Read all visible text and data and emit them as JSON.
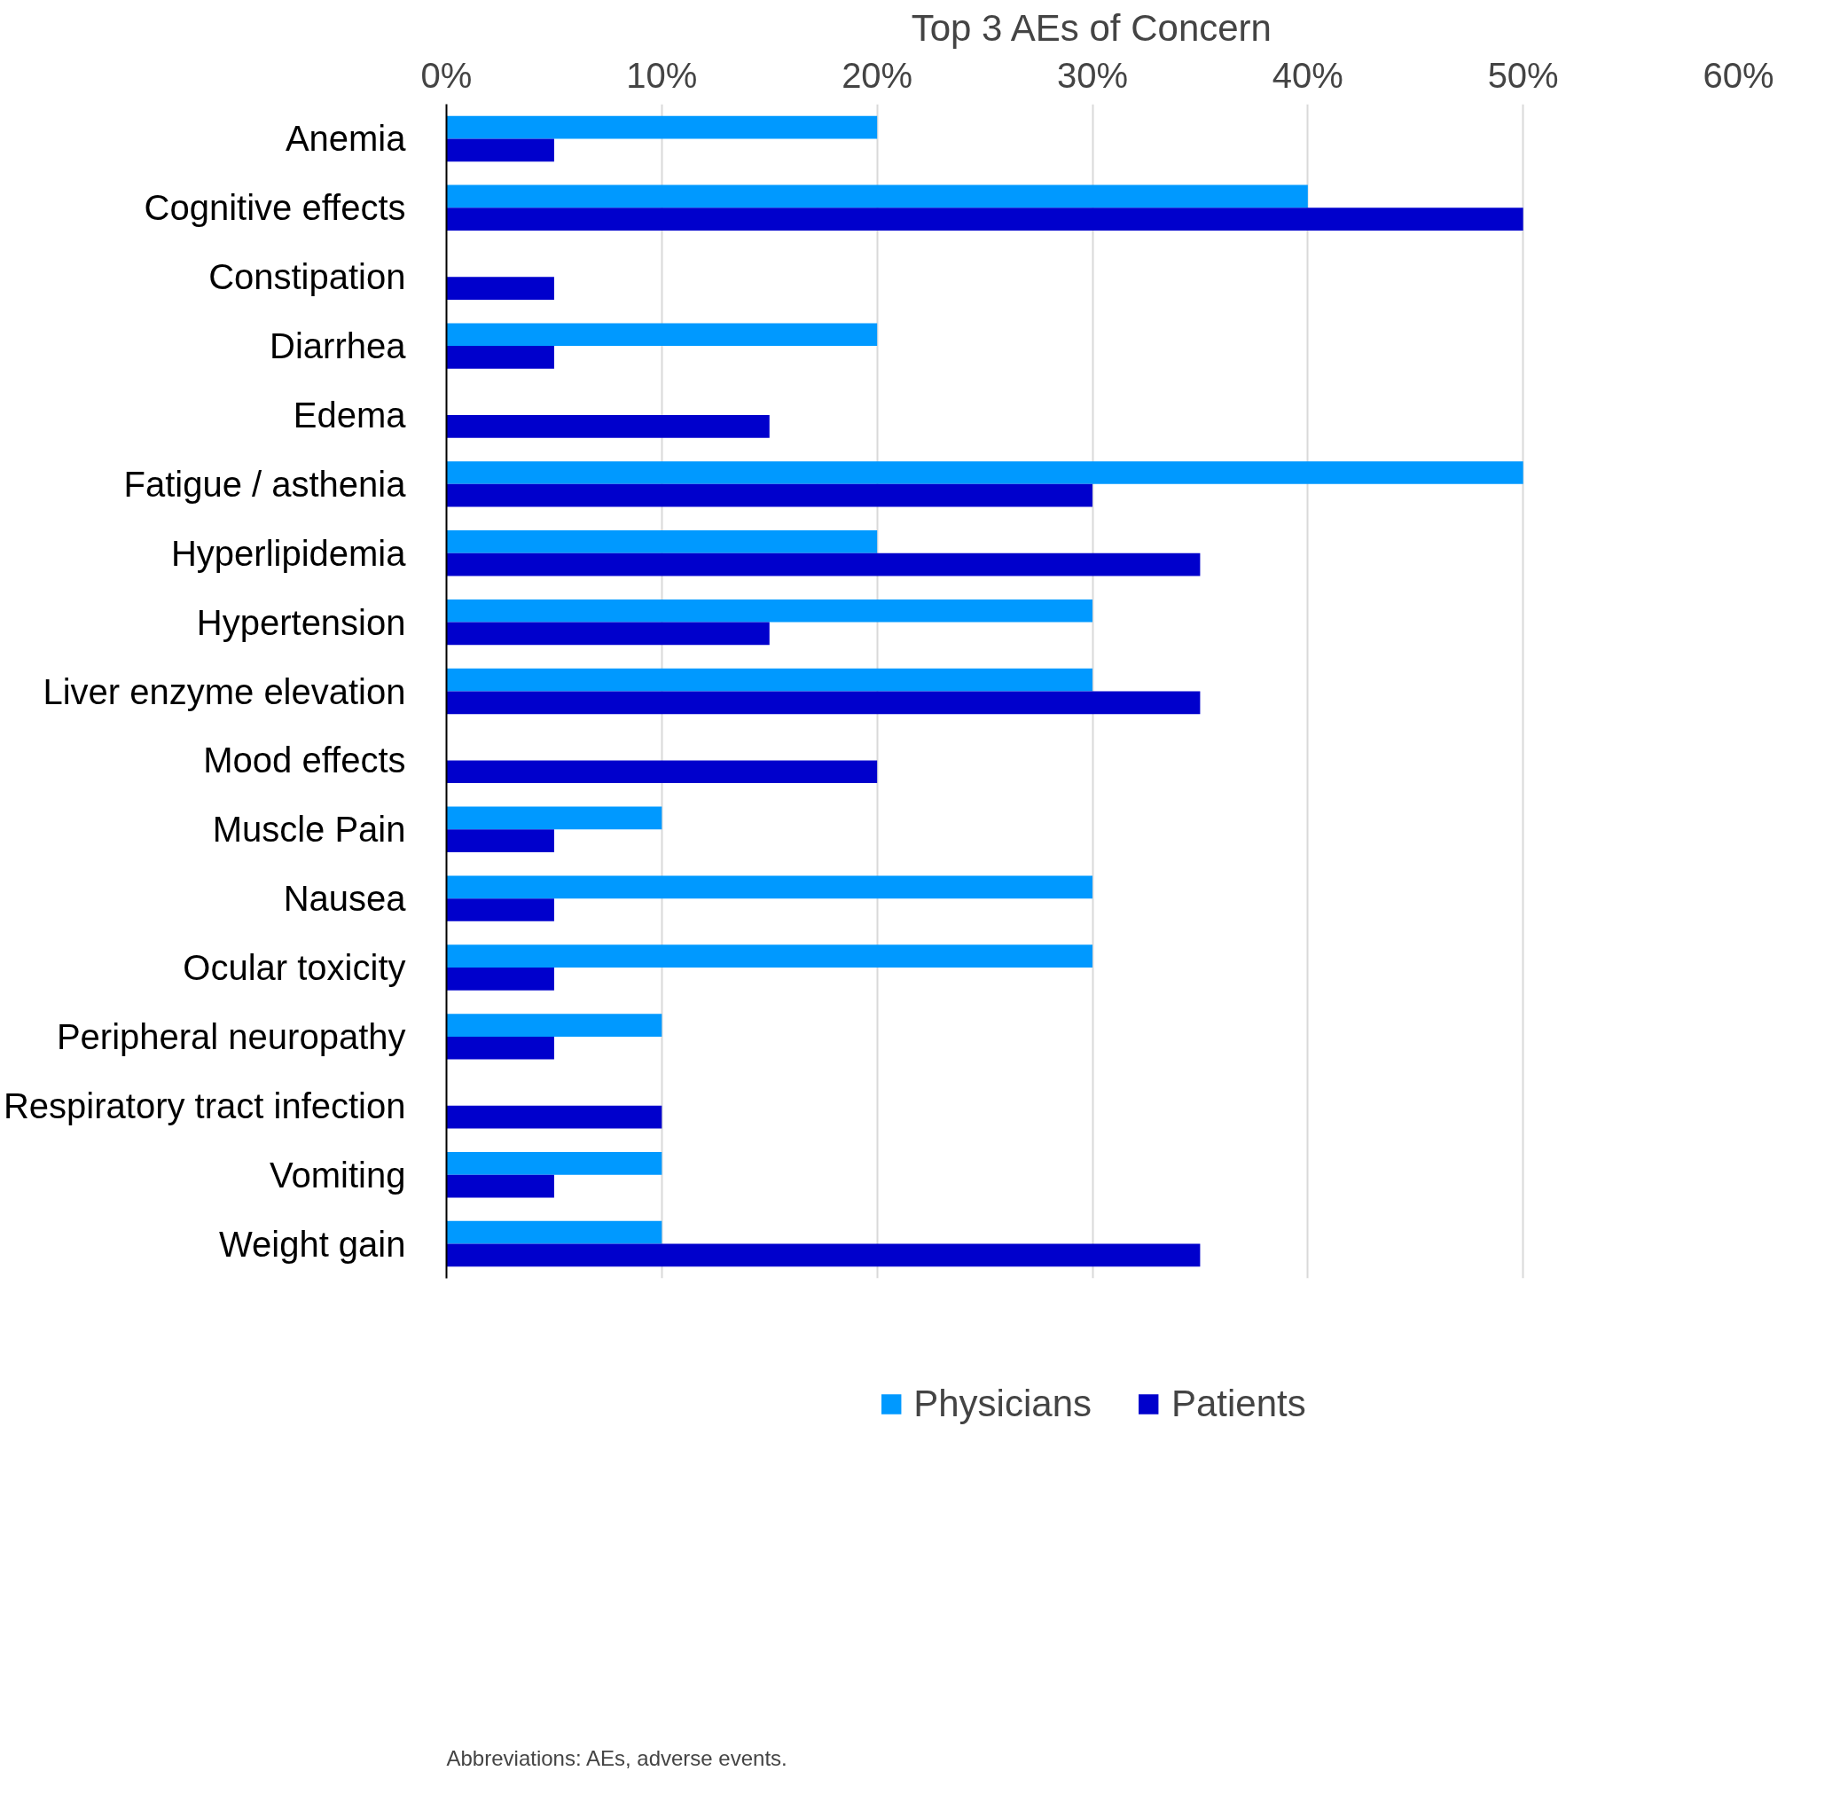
{
  "chart_data": {
    "type": "bar",
    "orientation": "horizontal",
    "title": "Top 3 AEs of Concern",
    "categories": [
      "Anemia",
      "Cognitive effects",
      "Constipation",
      "Diarrhea",
      "Edema",
      "Fatigue / asthenia",
      "Hyperlipidemia",
      "Hypertension",
      "Liver enzyme elevation",
      "Mood effects",
      "Muscle Pain",
      "Nausea",
      "Ocular toxicity",
      "Peripheral neuropathy",
      "Respiratory tract infection",
      "Vomiting",
      "Weight gain"
    ],
    "series": [
      {
        "name": "Physicians",
        "color": "#0099ff",
        "values": [
          20,
          40,
          null,
          20,
          null,
          50,
          20,
          30,
          30,
          null,
          10,
          30,
          30,
          10,
          null,
          10,
          10
        ]
      },
      {
        "name": "Patients",
        "color": "#0000cc",
        "values": [
          5,
          50,
          5,
          5,
          15,
          30,
          35,
          15,
          35,
          20,
          5,
          5,
          5,
          5,
          10,
          5,
          35
        ]
      }
    ],
    "xlim": [
      0,
      60
    ],
    "xticks": [
      {
        "value": 0,
        "label": "0%"
      },
      {
        "value": 10,
        "label": "10%"
      },
      {
        "value": 20,
        "label": "20%"
      },
      {
        "value": 30,
        "label": "30%"
      },
      {
        "value": 40,
        "label": "40%"
      },
      {
        "value": 50,
        "label": "50%"
      },
      {
        "value": 60,
        "label": "60%"
      }
    ],
    "grid": "x",
    "legend": "bottom",
    "annotations": [
      "Abbreviations: AEs, adverse events."
    ]
  }
}
